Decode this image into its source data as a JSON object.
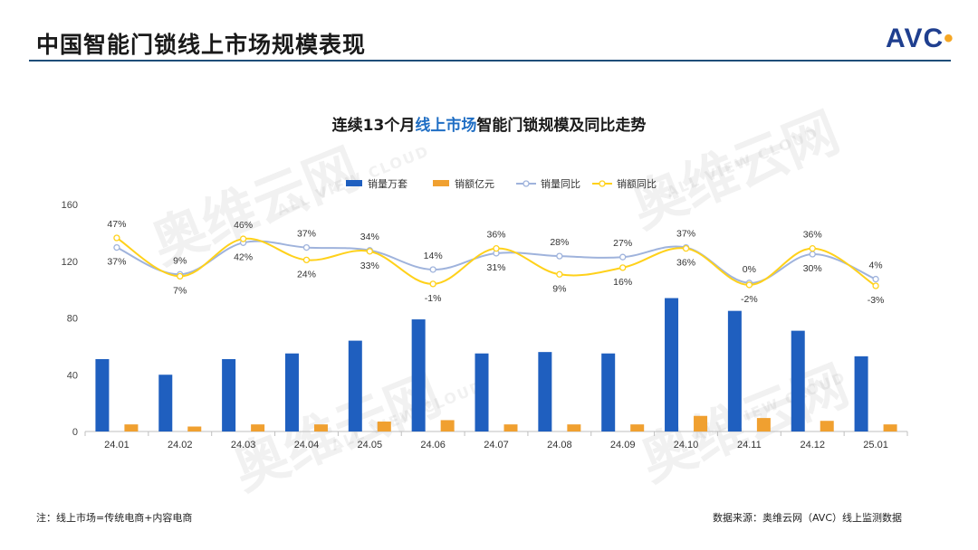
{
  "page": {
    "title": "中国智能门锁线上市场规模表现",
    "logo": "AVC",
    "watermark_text": "奥维云网",
    "watermark_subtext": "ALL VIEW CLOUD",
    "note": "注：线上市场=传统电商+内容电商",
    "source": "数据来源：奥维云网（AVC）线上监测数据"
  },
  "chart_title": {
    "prefix": "连续13个月",
    "highlight": "线上市场",
    "suffix": "智能门锁规模及同比走势"
  },
  "colors": {
    "sales_volume_bar": "#1f5fbf",
    "sales_value_bar": "#f0a030",
    "volume_yoy_line": "#9fb3dc",
    "value_yoy_line": "#ffd11a",
    "title_rule": "#1f4e79",
    "title_highlight": "#1f6ec4"
  },
  "chart_data": {
    "type": "bar",
    "categories": [
      "24.01",
      "24.02",
      "24.03",
      "24.04",
      "24.05",
      "24.06",
      "24.07",
      "24.08",
      "24.09",
      "24.10",
      "24.11",
      "24.12",
      "25.01"
    ],
    "ylim": [
      0,
      160
    ],
    "yticks": [
      0,
      40,
      80,
      120,
      160
    ],
    "grid": false,
    "legend_position": "top-center",
    "series": [
      {
        "name": "销量万套",
        "type": "bar",
        "values": [
          51,
          40,
          51,
          55,
          64,
          79,
          55,
          56,
          55,
          94,
          85,
          71,
          53
        ]
      },
      {
        "name": "销额亿元",
        "type": "bar",
        "values": [
          5.0,
          3.5,
          5.0,
          5.0,
          7.0,
          8.0,
          5.0,
          5.0,
          5.0,
          11.0,
          9.5,
          7.5,
          5.0
        ]
      },
      {
        "name": "销量同比",
        "type": "line",
        "values": [
          37,
          9,
          42,
          37,
          34,
          14,
          31,
          28,
          27,
          37,
          0,
          30,
          4
        ],
        "labels": [
          "37%",
          "9%",
          "42%",
          "37%",
          "34%",
          "14%",
          "31%",
          "28%",
          "27%",
          "37%",
          "0%",
          "30%",
          "4%"
        ]
      },
      {
        "name": "销额同比",
        "type": "line",
        "values": [
          47,
          7,
          46,
          24,
          33,
          -1,
          36,
          9,
          16,
          36,
          -2,
          36,
          -3
        ],
        "labels": [
          "47%",
          "7%",
          "46%",
          "24%",
          "33%",
          "-1%",
          "36%",
          "9%",
          "16%",
          "36%",
          "-2%",
          "36%",
          "-3%"
        ]
      }
    ]
  }
}
